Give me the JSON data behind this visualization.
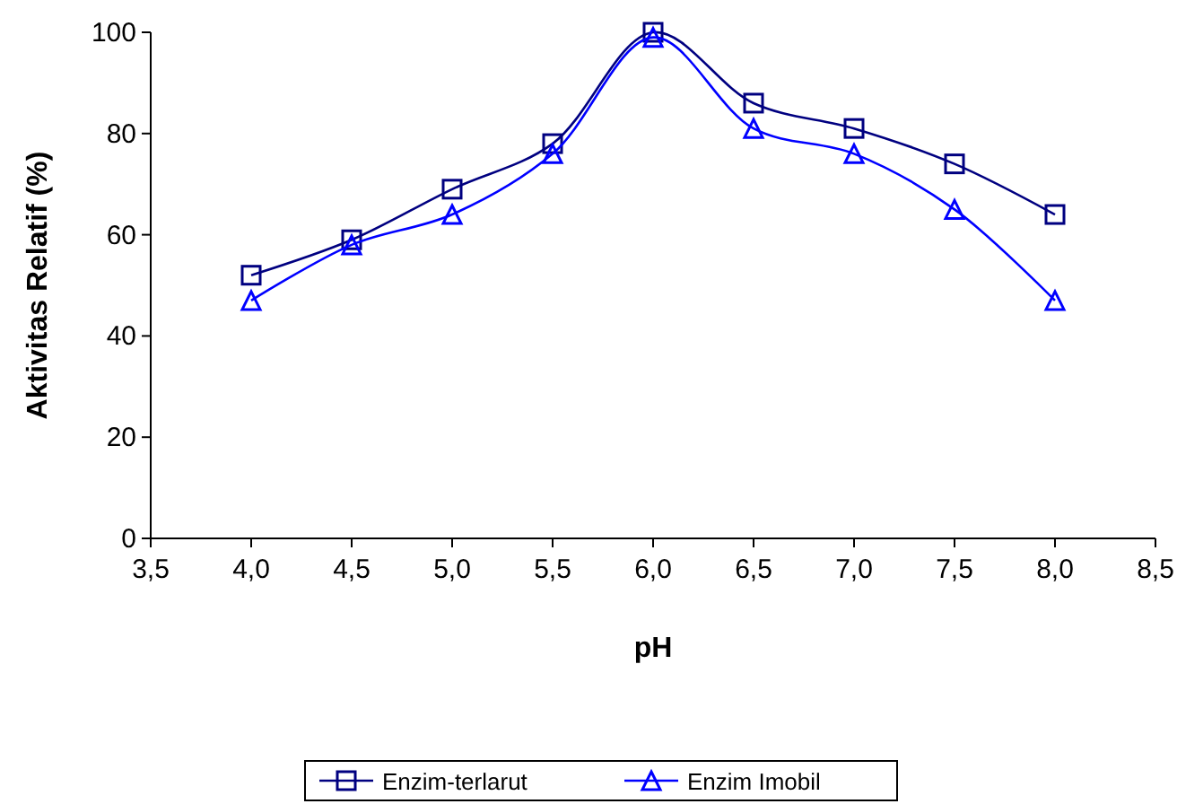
{
  "chart_data": {
    "type": "line",
    "xlabel": "pH",
    "ylabel": "Aktivitas Relatif (%)",
    "x": [
      4.0,
      4.5,
      5.0,
      5.5,
      6.0,
      6.5,
      7.0,
      7.5,
      8.0
    ],
    "series": [
      {
        "name": "Enzim-terlarut",
        "color": "#000080",
        "marker": "square",
        "values": [
          52,
          59,
          69,
          78,
          100,
          86,
          81,
          74,
          64
        ]
      },
      {
        "name": "Enzim Imobil",
        "color": "#0000ff",
        "marker": "triangle",
        "values": [
          47,
          58,
          64,
          76,
          99,
          81,
          76,
          65,
          47
        ]
      }
    ],
    "xlim": [
      3.5,
      8.5
    ],
    "xticks": [
      {
        "value": 3.5,
        "label": "3,5"
      },
      {
        "value": 4,
        "label": "4,0"
      },
      {
        "value": 4.5,
        "label": "4,5"
      },
      {
        "value": 5,
        "label": "5,0"
      },
      {
        "value": 5.5,
        "label": "5,5"
      },
      {
        "value": 6,
        "label": "6,0"
      },
      {
        "value": 6.5,
        "label": "6,5"
      },
      {
        "value": 7,
        "label": "7,0"
      },
      {
        "value": 7.5,
        "label": "7,5"
      },
      {
        "value": 8,
        "label": "8,0"
      },
      {
        "value": 8.5,
        "label": "8,5"
      }
    ],
    "ylim": [
      0,
      100
    ],
    "yticks": [
      0,
      20,
      40,
      60,
      80,
      100
    ],
    "grid": false,
    "legend": "bottom",
    "line_style": "solid"
  }
}
